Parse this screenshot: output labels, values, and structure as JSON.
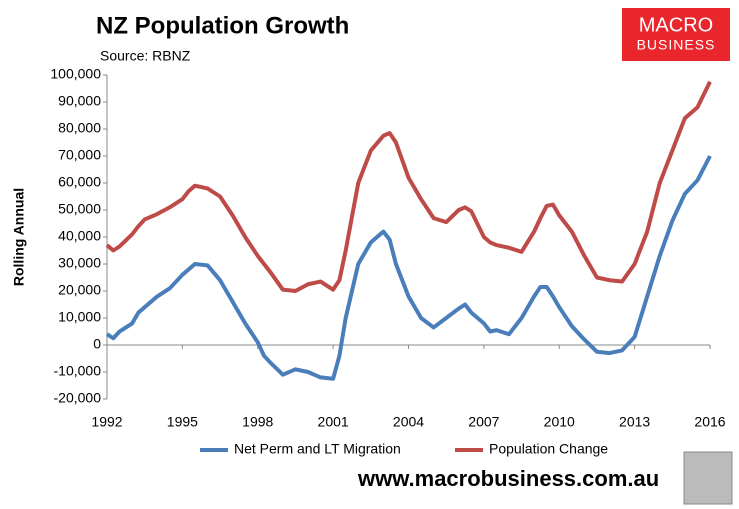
{
  "chart_data": {
    "type": "line",
    "title": "NZ Population Growth",
    "subtitle": "Source: RBNZ",
    "ylabel": "Rolling Annual",
    "logo": {
      "top": "MACRO",
      "bottom": "BUSINESS"
    },
    "footer": "www.macrobusiness.com.au",
    "x": [
      1992,
      1992.25,
      1992.5,
      1993,
      1993.25,
      1993.5,
      1994,
      1994.5,
      1995,
      1995.25,
      1995.5,
      1996,
      1996.5,
      1997,
      1997.5,
      1998,
      1998.25,
      1998.5,
      1999,
      1999.5,
      2000,
      2000.5,
      2001,
      2001.25,
      2001.5,
      2002,
      2002.5,
      2003,
      2003.25,
      2003.5,
      2004,
      2004.5,
      2005,
      2005.5,
      2006,
      2006.25,
      2006.5,
      2007,
      2007.25,
      2007.5,
      2008,
      2008.5,
      2009,
      2009.25,
      2009.5,
      2009.75,
      2010,
      2010.5,
      2011,
      2011.5,
      2012,
      2012.5,
      2013,
      2013.5,
      2014,
      2014.5,
      2015,
      2015.5,
      2016
    ],
    "series": [
      {
        "name": "Net Perm and LT Migration",
        "color": "#4a7ebb",
        "values": [
          4000,
          2500,
          5000,
          8000,
          12000,
          14000,
          18000,
          21000,
          26000,
          28000,
          30000,
          29500,
          24000,
          16000,
          8000,
          1000,
          -4000,
          -6500,
          -11000,
          -9000,
          -10000,
          -12000,
          -12500,
          -4000,
          10000,
          30000,
          38000,
          42000,
          39000,
          30000,
          18000,
          10000,
          6500,
          10000,
          13500,
          15000,
          12000,
          8000,
          5000,
          5500,
          4000,
          10000,
          18000,
          21500,
          21500,
          18000,
          14000,
          7000,
          2000,
          -2500,
          -3000,
          -2000,
          3000,
          18000,
          33000,
          46000,
          56000,
          61000,
          70000
        ]
      },
      {
        "name": "Population Change",
        "color": "#be4b48",
        "values": [
          37000,
          35000,
          36500,
          41000,
          44000,
          46500,
          48500,
          51000,
          54000,
          57000,
          59000,
          58000,
          55000,
          48000,
          40000,
          33000,
          30000,
          27000,
          20500,
          20000,
          22500,
          23500,
          20500,
          24000,
          35000,
          60000,
          72000,
          77500,
          78500,
          75000,
          62000,
          54000,
          47000,
          45500,
          50000,
          51000,
          49500,
          40000,
          38000,
          37000,
          36000,
          34500,
          42000,
          47000,
          51500,
          52000,
          48000,
          42000,
          33000,
          25000,
          24000,
          23500,
          30000,
          42000,
          60000,
          72000,
          84000,
          88000,
          97500
        ]
      }
    ],
    "xlim": [
      1992,
      2016
    ],
    "xticks": [
      1992,
      1995,
      1998,
      2001,
      2004,
      2007,
      2010,
      2013,
      2016
    ],
    "ylim": [
      -20000,
      100000
    ],
    "yticks": [
      {
        "value": -20000,
        "label": "-20,000"
      },
      {
        "value": -10000,
        "label": "-10,000"
      },
      0,
      {
        "value": 10000,
        "label": "10,000"
      },
      {
        "value": 20000,
        "label": "20,000"
      },
      {
        "value": 30000,
        "label": "30,000"
      },
      {
        "value": 40000,
        "label": "40,000"
      },
      {
        "value": 50000,
        "label": "50,000"
      },
      {
        "value": 60000,
        "label": "60,000"
      },
      {
        "value": 70000,
        "label": "70,000"
      },
      {
        "value": 80000,
        "label": "80,000"
      },
      {
        "value": 90000,
        "label": "90,000"
      },
      {
        "value": 100000,
        "label": "100,000"
      }
    ],
    "grid": false,
    "legend": "bottom"
  }
}
